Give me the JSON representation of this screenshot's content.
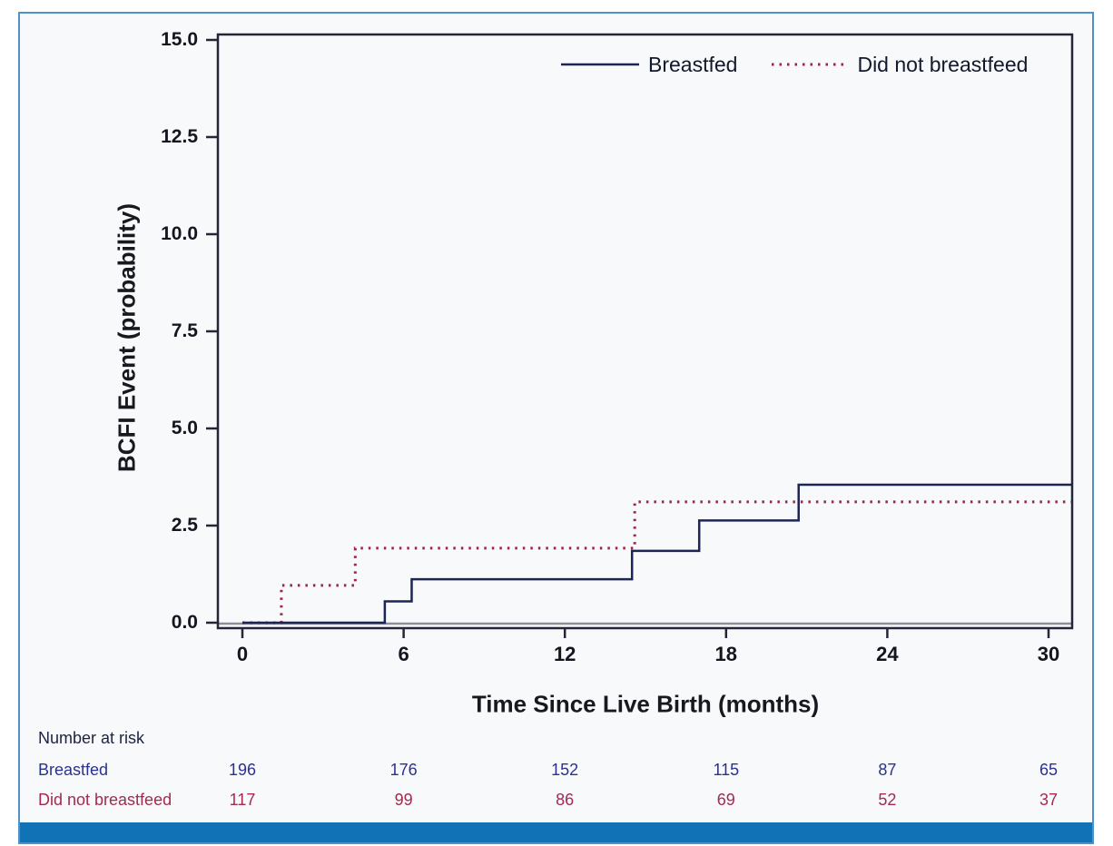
{
  "colors": {
    "outer_border": "#4e92c9",
    "inner_background": "#f7f9fb",
    "bottom_bar": "#1173b5",
    "axis_frame": "#25253a",
    "baseline_gray": "#8f8f9a",
    "tick_text": "#15151f",
    "title_text": "#18181f"
  },
  "chart_data": {
    "type": "line",
    "subtype": "kaplan-meier-step",
    "title": "",
    "xlabel": "Time Since Live Birth (months)",
    "ylabel": "BCFI Event (probability)",
    "xlim": [
      -0.9,
      30.85
    ],
    "ylim": [
      0,
      15
    ],
    "x_ticks": [
      0,
      6,
      12,
      18,
      24,
      30
    ],
    "x_tick_labels": [
      "0",
      "6",
      "12",
      "18",
      "24",
      "30"
    ],
    "y_ticks": [
      0.0,
      2.5,
      5.0,
      7.5,
      10.0,
      12.5,
      15.0
    ],
    "y_tick_labels": [
      "0.0",
      "2.5",
      "5.0",
      "7.5",
      "10.0",
      "12.5",
      "15.0"
    ],
    "grid": false,
    "legend_position": "top-right-inside",
    "series": [
      {
        "name": "Breastfed",
        "color": "#1d2553",
        "line_style": "solid",
        "step_points": [
          [
            0,
            0
          ],
          [
            5.3,
            0.55
          ],
          [
            6.3,
            1.12
          ],
          [
            14.5,
            1.85
          ],
          [
            17.0,
            2.63
          ],
          [
            20.7,
            3.55
          ]
        ],
        "end_x": 30.85
      },
      {
        "name": "Did not breastfeed",
        "color": "#9c2448",
        "line_style": "dotted",
        "step_points": [
          [
            0,
            0
          ],
          [
            1.45,
            0.96
          ],
          [
            4.2,
            1.92
          ],
          [
            14.6,
            3.11
          ]
        ],
        "end_x": 30.85
      }
    ]
  },
  "risk_table": {
    "title": "Number at risk",
    "times": [
      0,
      6,
      12,
      18,
      24,
      30
    ],
    "rows": [
      {
        "label": "Breastfed",
        "color": "#2b3190",
        "values": [
          "196",
          "176",
          "152",
          "115",
          "87",
          "65"
        ]
      },
      {
        "label": "Did not breastfeed",
        "color": "#a52a4e",
        "values": [
          "117",
          "99",
          "86",
          "69",
          "52",
          "37"
        ]
      }
    ]
  }
}
